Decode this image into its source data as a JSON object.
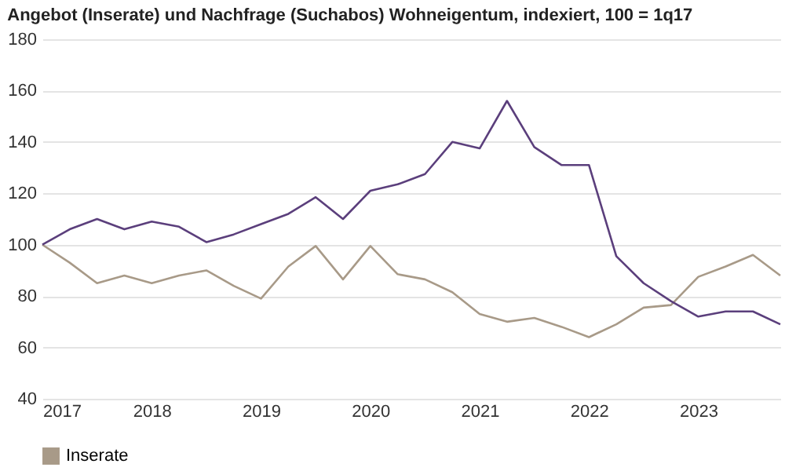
{
  "chart_data": {
    "type": "line",
    "title": "Angebot (Inserate) und Nachfrage (Suchabos) Wohneigentum, indexiert, 100 = 1q17",
    "x": [
      2017,
      2017.25,
      2017.5,
      2017.75,
      2018,
      2018.25,
      2018.5,
      2018.75,
      2019,
      2019.25,
      2019.5,
      2019.75,
      2020,
      2020.25,
      2020.5,
      2020.75,
      2021,
      2021.25,
      2021.5,
      2021.75,
      2022,
      2022.25,
      2022.5,
      2022.75,
      2023,
      2023.25,
      2023.5,
      2023.75
    ],
    "series": [
      {
        "name": "Inserate",
        "color": "#a89a88",
        "values": [
          100,
          93,
          85,
          88,
          85,
          88,
          90,
          84,
          79,
          91.5,
          99.5,
          86.5,
          99.5,
          88.5,
          86.5,
          81.5,
          73,
          70,
          71.5,
          68,
          64,
          69,
          75.5,
          76.5,
          87.5,
          91.5,
          96,
          88
        ]
      },
      {
        "color": "#5b3f7c",
        "values": [
          100,
          106,
          110,
          106,
          109,
          107,
          101,
          104,
          108,
          112,
          118.5,
          110,
          121,
          123.5,
          127.5,
          140,
          137.5,
          156,
          138,
          131,
          131,
          95.5,
          85,
          78,
          72,
          74,
          74,
          69
        ]
      }
    ],
    "xlim": [
      2017,
      2023.75
    ],
    "xticks": [
      2017,
      2018,
      2019,
      2020,
      2021,
      2022,
      2023
    ],
    "ylim": [
      40,
      180
    ],
    "yticks": [
      40,
      60,
      80,
      100,
      120,
      140,
      160,
      180
    ],
    "grid": "y",
    "legend": "bottom left",
    "marker": "none",
    "line_style": "solid"
  }
}
